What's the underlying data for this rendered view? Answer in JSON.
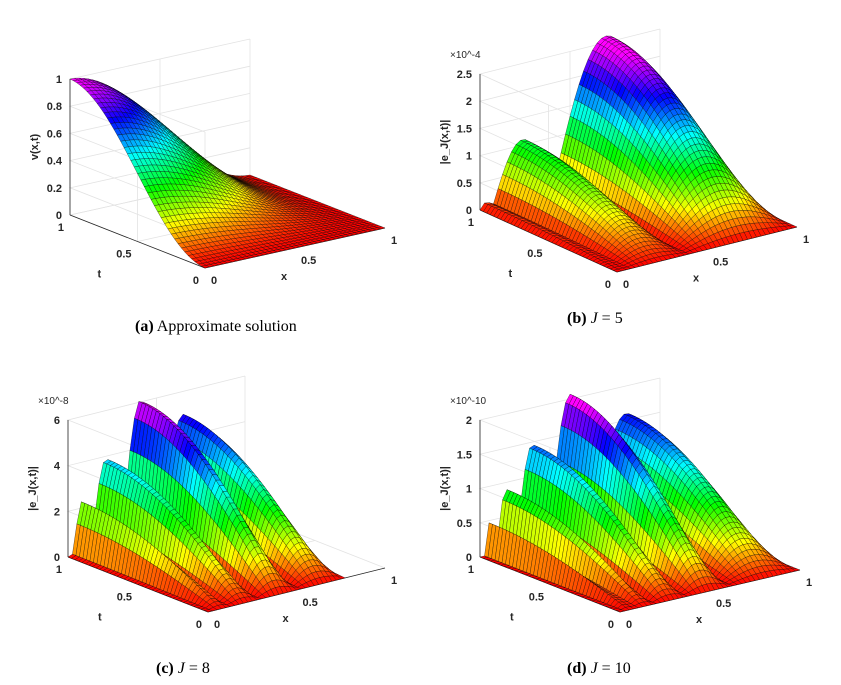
{
  "chart_data": [
    {
      "type": "surface",
      "caption": {
        "tag": "(a)",
        "text": "Approximate solution"
      },
      "xlabel": "x",
      "ylabel": "t",
      "zlabel": "v(x,t)",
      "xticks": [
        "0",
        "0.5",
        "1"
      ],
      "yticks": [
        "0",
        "0.5",
        "1"
      ],
      "zticks": [
        "0",
        "0.2",
        "0.4",
        "0.6",
        "0.8",
        "1"
      ],
      "xlim": [
        0,
        1
      ],
      "ylim": [
        0,
        1
      ],
      "zlim": [
        0,
        1
      ],
      "zexponent": "",
      "grid": true,
      "colormap": "hsv (red low → magenta high)"
    },
    {
      "type": "surface",
      "caption": {
        "tag": "(b)",
        "var": "J",
        "text": "= 5"
      },
      "xlabel": "x",
      "ylabel": "t",
      "zlabel": "|e_J(x,t)|",
      "xticks": [
        "0",
        "0.5",
        "1"
      ],
      "yticks": [
        "0",
        "0.5",
        "1"
      ],
      "zticks": [
        "0",
        "0.5",
        "1",
        "1.5",
        "2",
        "2.5"
      ],
      "xlim": [
        0,
        1
      ],
      "ylim": [
        0,
        1
      ],
      "zlim": [
        0,
        2.5
      ],
      "zexponent": "×10^-4",
      "grid": true,
      "colormap": "hsv (red low → magenta high)"
    },
    {
      "type": "surface",
      "caption": {
        "tag": "(c)",
        "var": "J",
        "text": "= 8"
      },
      "xlabel": "x",
      "ylabel": "t",
      "zlabel": "|e_J(x,t)|",
      "xticks": [
        "0",
        "0.5",
        "1"
      ],
      "yticks": [
        "0",
        "0.5",
        "1"
      ],
      "zticks": [
        "0",
        "2",
        "4",
        "6"
      ],
      "xlim": [
        0,
        1
      ],
      "ylim": [
        0,
        1
      ],
      "zlim": [
        0,
        6
      ],
      "zexponent": "×10^-8",
      "grid": true,
      "colormap": "hsv (red low → magenta high)"
    },
    {
      "type": "surface",
      "caption": {
        "tag": "(d)",
        "var": "J",
        "text": "= 10"
      },
      "xlabel": "x",
      "ylabel": "t",
      "zlabel": "|e_J(x,t)|",
      "xticks": [
        "0",
        "0.5",
        "1"
      ],
      "yticks": [
        "0",
        "0.5",
        "1"
      ],
      "zticks": [
        "0",
        "0.5",
        "1",
        "1.5",
        "2"
      ],
      "xlim": [
        0,
        1
      ],
      "ylim": [
        0,
        1
      ],
      "zlim": [
        0,
        2
      ],
      "zexponent": "×10^-10",
      "grid": true,
      "colormap": "hsv (red low → magenta high)"
    }
  ]
}
